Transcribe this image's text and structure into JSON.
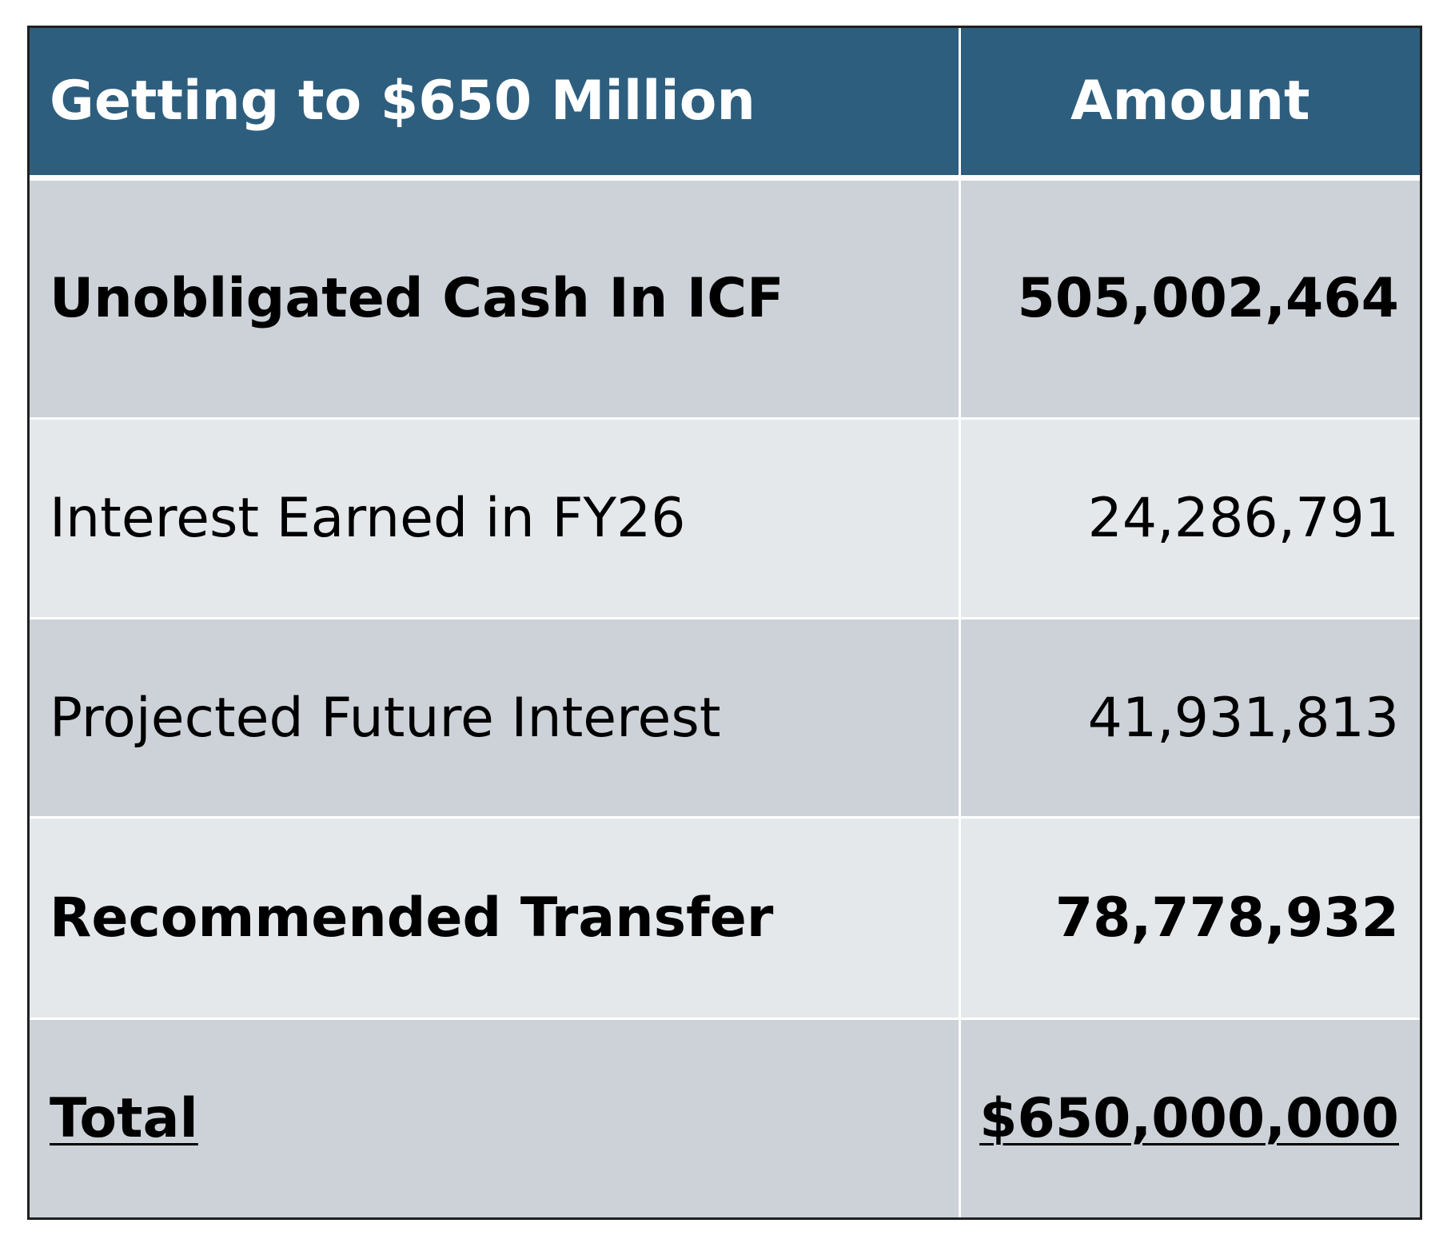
{
  "table": {
    "headers": {
      "label": "Getting to $650 Million",
      "amount": "Amount"
    },
    "rows": [
      {
        "label": "Unobligated Cash In ICF",
        "amount": "505,002,464",
        "bold": true
      },
      {
        "label": "Interest Earned in FY26",
        "amount": "24,286,791",
        "bold": false
      },
      {
        "label": "Projected Future Interest",
        "amount": "41,931,813",
        "bold": false
      },
      {
        "label": "Recommended Transfer",
        "amount": "78,778,932",
        "bold": true
      },
      {
        "label": "Total",
        "amount": "$650,000,000",
        "bold": true,
        "underline": true
      }
    ]
  },
  "colors": {
    "header_bg": "#2e5e7e",
    "row_dark": "#ccd2d7",
    "row_light": "#e4e8eb"
  }
}
